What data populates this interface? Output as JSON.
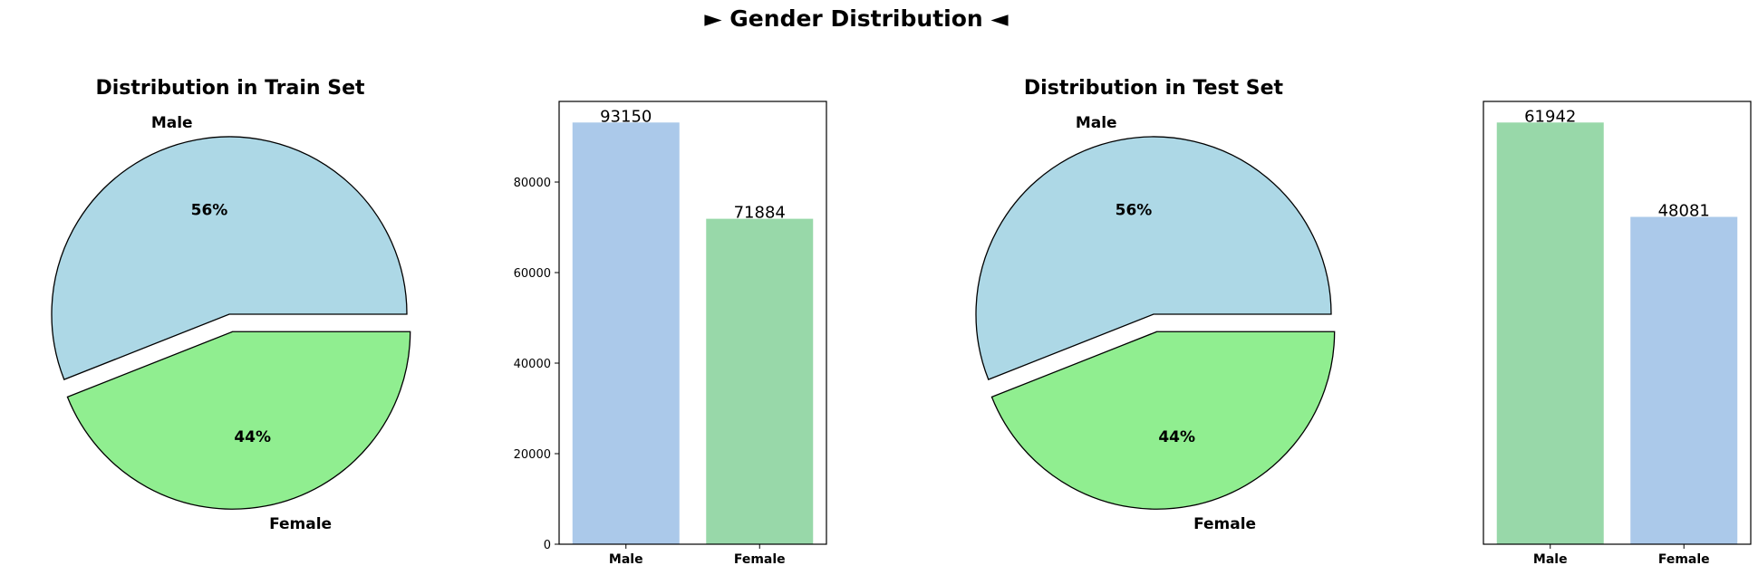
{
  "suptitle": "► Gender Distribution ◄",
  "colors": {
    "pie_male": "#add8e6",
    "pie_female": "#90ee90",
    "bar_blue": "#abc9ea",
    "bar_green": "#98d8a9"
  },
  "chart_data": [
    {
      "type": "pie",
      "title": "Distribution in Train Set",
      "labels": [
        "Male",
        "Female"
      ],
      "values": [
        56,
        44
      ],
      "value_labels": [
        "56%",
        "44%"
      ],
      "explode": [
        0,
        0.1
      ],
      "colors": [
        "#add8e6",
        "#90ee90"
      ]
    },
    {
      "type": "bar",
      "title": "",
      "categories": [
        "Male",
        "Female"
      ],
      "values": [
        93150,
        71884
      ],
      "value_labels": [
        "93150",
        "71884"
      ],
      "colors": [
        "#abc9ea",
        "#98d8a9"
      ],
      "ylim": [
        0,
        97807
      ],
      "yticks": [
        0,
        20000,
        40000,
        60000,
        80000
      ],
      "ytick_labels": [
        "0",
        "20000",
        "40000",
        "60000",
        "80000"
      ],
      "grid": false
    },
    {
      "type": "pie",
      "title": "Distribution in Test Set",
      "labels": [
        "Male",
        "Female"
      ],
      "values": [
        56,
        44
      ],
      "value_labels": [
        "56%",
        "44%"
      ],
      "explode": [
        0,
        0.1
      ],
      "colors": [
        "#add8e6",
        "#90ee90"
      ]
    },
    {
      "type": "bar",
      "title": "",
      "categories": [
        "Male",
        "Female"
      ],
      "values": [
        61942,
        48081
      ],
      "value_labels": [
        "61942",
        "48081"
      ],
      "colors": [
        "#98d8a9",
        "#abc9ea"
      ],
      "ylim": [
        0,
        65039
      ],
      "yticks": [],
      "ytick_labels": [],
      "grid": false
    }
  ]
}
